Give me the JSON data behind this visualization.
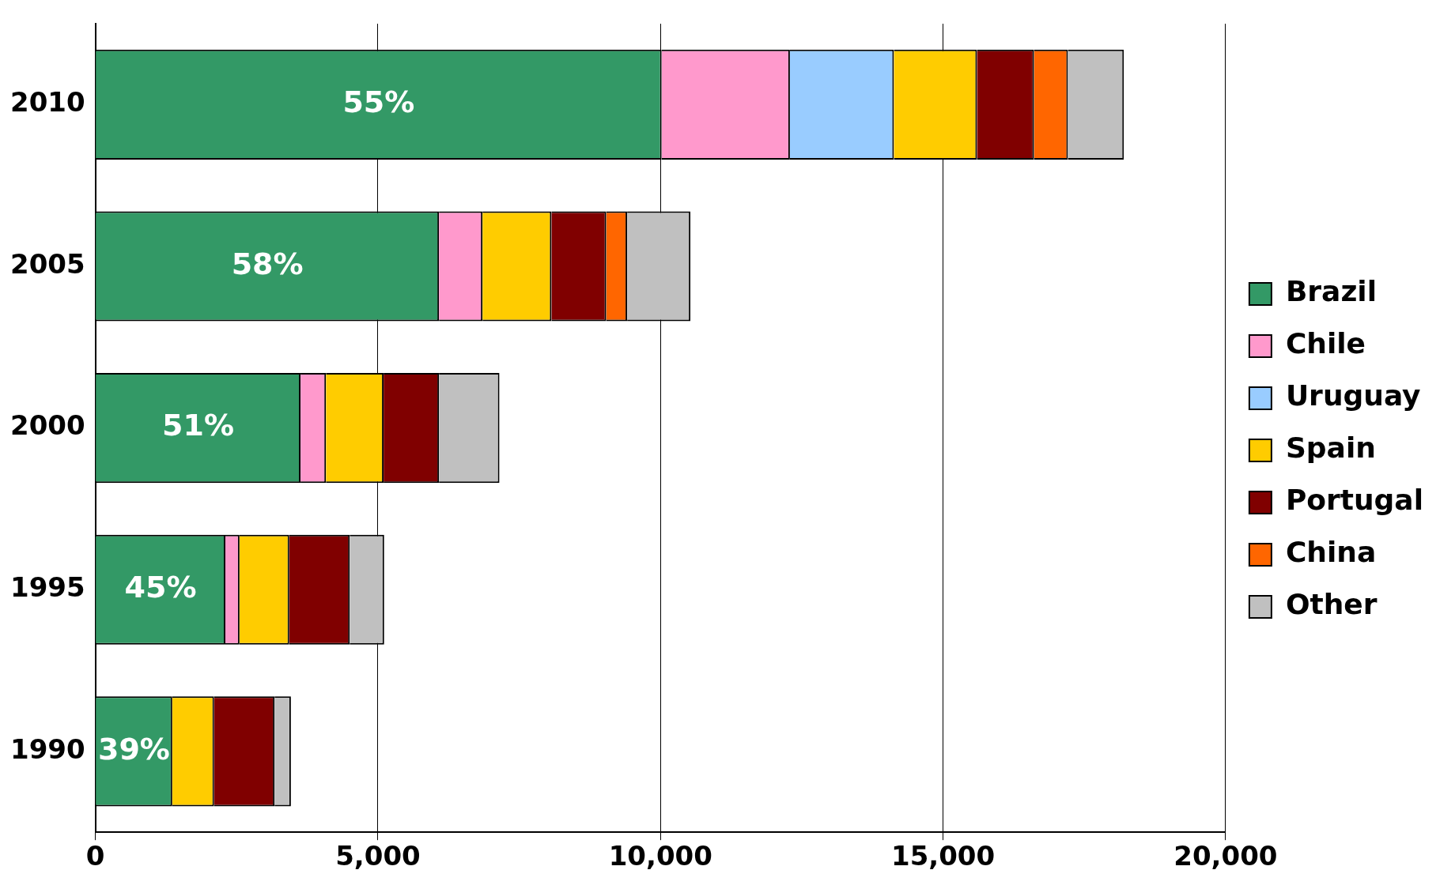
{
  "chart_data": {
    "type": "bar",
    "orientation": "horizontal",
    "stacked": true,
    "categories": [
      "2010",
      "2005",
      "2000",
      "1995",
      "1990"
    ],
    "series": [
      {
        "name": "Brazil",
        "color": "#339966",
        "values": [
          10020,
          6080,
          3630,
          2300,
          1360
        ]
      },
      {
        "name": "Chile",
        "color": "#ff99cc",
        "values": [
          2270,
          770,
          450,
          250,
          null
        ]
      },
      {
        "name": "Uruguay",
        "color": "#99ccff",
        "values": [
          1840,
          null,
          null,
          null,
          null
        ]
      },
      {
        "name": "Spain",
        "color": "#ffcc00",
        "values": [
          1470,
          1220,
          1020,
          880,
          740
        ]
      },
      {
        "name": "Portugal",
        "color": "#800000",
        "values": [
          1010,
          970,
          980,
          1070,
          1070
        ]
      },
      {
        "name": "China",
        "color": "#ff6600",
        "values": [
          600,
          370,
          null,
          null,
          null
        ]
      },
      {
        "name": "Other",
        "color": "#c0c0c0",
        "values": [
          990,
          1120,
          1070,
          610,
          290
        ]
      }
    ],
    "xlim": [
      0,
      20000
    ],
    "xticks": [
      {
        "value": 0,
        "label": "0"
      },
      {
        "value": 5000,
        "label": "5,000"
      },
      {
        "value": 10000,
        "label": "10,000"
      },
      {
        "value": 15000,
        "label": "15,000"
      },
      {
        "value": 20000,
        "label": "20,000"
      }
    ],
    "annotations": [
      "55%",
      "58%",
      "51%",
      "45%",
      "39%"
    ],
    "grid": "x",
    "legend": "right"
  }
}
